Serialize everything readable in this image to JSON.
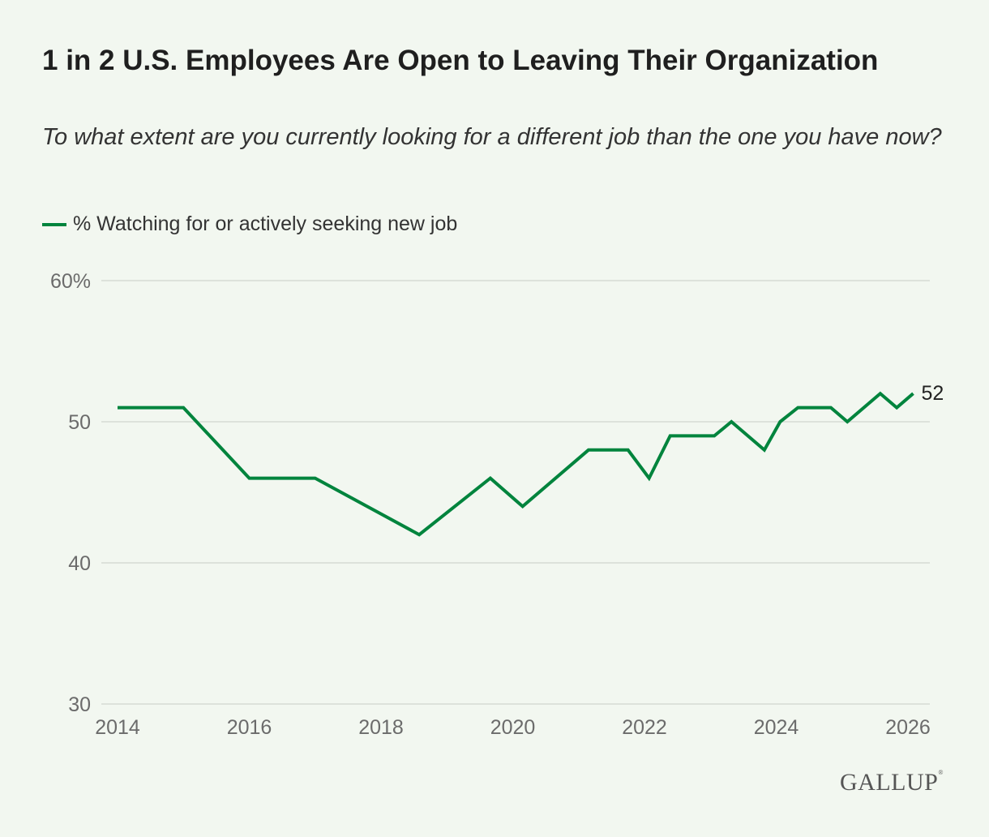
{
  "title": "1 in 2 U.S. Employees Are Open to Leaving Their Organization",
  "subtitle": "To what extent are you currently looking for a different job than the one you have now?",
  "logo": "GALLUP",
  "chart_data": {
    "type": "line",
    "title": "1 in 2 U.S. Employees Are Open to Leaving Their Organization",
    "subtitle": "To what extent are you currently looking for a different job than the one you have now?",
    "xlabel": "",
    "ylabel": "",
    "xlim": [
      2014,
      2026
    ],
    "ylim": [
      30,
      60
    ],
    "x_ticks": [
      "2014",
      "2016",
      "2018",
      "2020",
      "2022",
      "2024",
      "2026"
    ],
    "y_ticks": [
      "30",
      "40",
      "50",
      "60%"
    ],
    "grid": "horizontal",
    "legend_placement": "top-left",
    "series": [
      {
        "name": "% Watching for or actively seeking new job",
        "color": "#00843d",
        "x": [
          2014.0,
          2015.0,
          2016.0,
          2017.0,
          2018.58,
          2019.66,
          2020.15,
          2021.15,
          2021.75,
          2022.07,
          2022.39,
          2023.06,
          2023.32,
          2023.82,
          2024.06,
          2024.33,
          2024.83,
          2025.08,
          2025.58,
          2025.83,
          2026.08
        ],
        "y": [
          51,
          51,
          46,
          46,
          42,
          46,
          44,
          48,
          48,
          46,
          49,
          49,
          50,
          48,
          50,
          51,
          51,
          50,
          52,
          51,
          52
        ],
        "end_label": "52"
      }
    ]
  }
}
